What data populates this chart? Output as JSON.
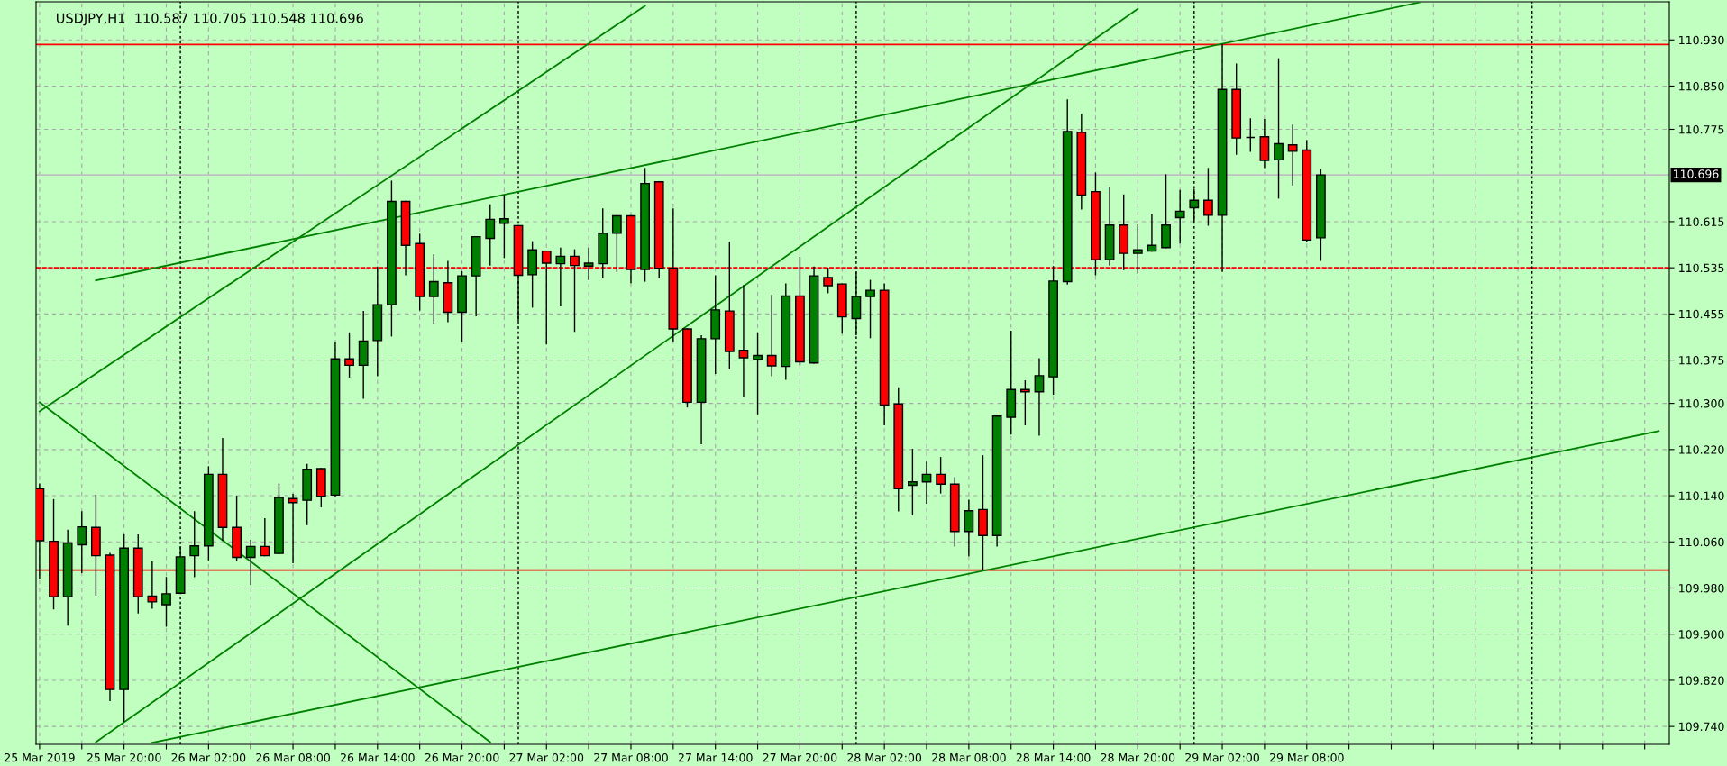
{
  "chart_data": {
    "type": "candlestick",
    "title": "USDJPY,H1  110.587 110.705 110.548 110.696",
    "x": [
      "2019-03-25T14:00",
      "2019-03-25T15:00",
      "2019-03-25T16:00",
      "2019-03-25T17:00",
      "2019-03-25T18:00",
      "2019-03-25T19:00",
      "2019-03-25T20:00",
      "2019-03-25T21:00",
      "2019-03-25T22:00",
      "2019-03-25T23:00",
      "2019-03-26T00:00",
      "2019-03-26T01:00",
      "2019-03-26T02:00",
      "2019-03-26T03:00",
      "2019-03-26T04:00",
      "2019-03-26T05:00",
      "2019-03-26T06:00",
      "2019-03-26T07:00",
      "2019-03-26T08:00",
      "2019-03-26T09:00",
      "2019-03-26T10:00",
      "2019-03-26T11:00",
      "2019-03-26T12:00",
      "2019-03-26T13:00",
      "2019-03-26T14:00",
      "2019-03-26T15:00",
      "2019-03-26T16:00",
      "2019-03-26T17:00",
      "2019-03-26T18:00",
      "2019-03-26T19:00",
      "2019-03-26T20:00",
      "2019-03-26T21:00",
      "2019-03-26T22:00",
      "2019-03-26T23:00",
      "2019-03-27T00:00",
      "2019-03-27T01:00",
      "2019-03-27T02:00",
      "2019-03-27T03:00",
      "2019-03-27T04:00",
      "2019-03-27T05:00",
      "2019-03-27T06:00",
      "2019-03-27T07:00",
      "2019-03-27T08:00",
      "2019-03-27T09:00",
      "2019-03-27T10:00",
      "2019-03-27T11:00",
      "2019-03-27T12:00",
      "2019-03-27T13:00",
      "2019-03-27T14:00",
      "2019-03-27T15:00",
      "2019-03-27T16:00",
      "2019-03-27T17:00",
      "2019-03-27T18:00",
      "2019-03-27T19:00",
      "2019-03-27T20:00",
      "2019-03-27T21:00",
      "2019-03-27T22:00",
      "2019-03-27T23:00",
      "2019-03-28T00:00",
      "2019-03-28T01:00",
      "2019-03-28T02:00",
      "2019-03-28T03:00",
      "2019-03-28T04:00",
      "2019-03-28T05:00",
      "2019-03-28T06:00",
      "2019-03-28T07:00",
      "2019-03-28T08:00",
      "2019-03-28T09:00",
      "2019-03-28T10:00",
      "2019-03-28T11:00",
      "2019-03-28T12:00",
      "2019-03-28T13:00",
      "2019-03-28T14:00",
      "2019-03-28T15:00",
      "2019-03-28T16:00",
      "2019-03-28T17:00",
      "2019-03-28T18:00",
      "2019-03-28T19:00",
      "2019-03-28T20:00",
      "2019-03-28T21:00",
      "2019-03-28T22:00",
      "2019-03-28T23:00",
      "2019-03-29T00:00",
      "2019-03-29T01:00",
      "2019-03-29T02:00",
      "2019-03-29T03:00",
      "2019-03-29T04:00",
      "2019-03-29T05:00",
      "2019-03-29T06:00",
      "2019-03-29T07:00",
      "2019-03-29T08:00",
      "2019-03-29T09:00"
    ],
    "ohlc": [
      [
        110.152,
        110.16,
        109.996,
        110.062
      ],
      [
        110.061,
        110.133,
        109.944,
        109.965
      ],
      [
        109.965,
        110.08,
        109.916,
        110.058
      ],
      [
        110.055,
        110.112,
        110.007,
        110.086
      ],
      [
        110.085,
        110.141,
        109.968,
        110.036
      ],
      [
        110.037,
        110.04,
        109.785,
        109.804
      ],
      [
        109.804,
        110.072,
        109.749,
        110.049
      ],
      [
        110.049,
        110.072,
        109.937,
        109.965
      ],
      [
        109.966,
        110.025,
        109.945,
        109.956
      ],
      [
        109.951,
        109.998,
        109.914,
        109.97
      ],
      [
        109.971,
        110.051,
        109.971,
        110.034
      ],
      [
        110.036,
        110.112,
        110.0,
        110.053
      ],
      [
        110.053,
        110.19,
        110.029,
        110.177
      ],
      [
        110.177,
        110.239,
        110.063,
        110.085
      ],
      [
        110.085,
        110.139,
        110.028,
        110.033
      ],
      [
        110.033,
        110.063,
        109.986,
        110.052
      ],
      [
        110.052,
        110.1,
        110.036,
        110.036
      ],
      [
        110.04,
        110.16,
        110.04,
        110.137
      ],
      [
        110.135,
        110.142,
        110.024,
        110.128
      ],
      [
        110.132,
        110.194,
        110.09,
        110.186
      ],
      [
        110.187,
        110.187,
        110.121,
        110.139
      ],
      [
        110.141,
        110.405,
        110.139,
        110.377
      ],
      [
        110.377,
        110.422,
        110.346,
        110.366
      ],
      [
        110.366,
        110.459,
        110.309,
        110.408
      ],
      [
        110.409,
        110.536,
        110.348,
        110.471
      ],
      [
        110.471,
        110.685,
        110.417,
        110.65
      ],
      [
        110.65,
        110.65,
        110.523,
        110.574
      ],
      [
        110.577,
        110.593,
        110.462,
        110.485
      ],
      [
        110.485,
        110.557,
        110.439,
        110.511
      ],
      [
        110.509,
        110.546,
        110.442,
        110.458
      ],
      [
        110.458,
        110.528,
        110.408,
        110.521
      ],
      [
        110.521,
        110.589,
        110.452,
        110.589
      ],
      [
        110.586,
        110.644,
        110.54,
        110.619
      ],
      [
        110.612,
        110.66,
        110.553,
        110.62
      ],
      [
        110.608,
        110.608,
        110.443,
        110.522
      ],
      [
        110.523,
        110.58,
        110.467,
        110.566
      ],
      [
        110.564,
        110.564,
        110.403,
        110.543
      ],
      [
        110.542,
        110.569,
        110.469,
        110.555
      ],
      [
        110.555,
        110.566,
        110.425,
        110.539
      ],
      [
        110.538,
        110.569,
        110.515,
        110.543
      ],
      [
        110.542,
        110.637,
        110.518,
        110.595
      ],
      [
        110.595,
        110.625,
        110.529,
        110.625
      ],
      [
        110.625,
        110.625,
        110.509,
        110.532
      ],
      [
        110.532,
        110.707,
        110.512,
        110.681
      ],
      [
        110.684,
        110.684,
        110.518,
        110.534
      ],
      [
        110.534,
        110.637,
        110.408,
        110.429
      ],
      [
        110.429,
        110.429,
        110.294,
        110.302
      ],
      [
        110.302,
        110.417,
        110.23,
        110.412
      ],
      [
        110.412,
        110.521,
        110.352,
        110.462
      ],
      [
        110.46,
        110.579,
        110.36,
        110.39
      ],
      [
        110.392,
        110.504,
        110.312,
        110.379
      ],
      [
        110.376,
        110.422,
        110.282,
        110.383
      ],
      [
        110.383,
        110.487,
        110.348,
        110.365
      ],
      [
        110.364,
        110.507,
        110.342,
        110.486
      ],
      [
        110.486,
        110.553,
        110.367,
        110.372
      ],
      [
        110.37,
        110.536,
        110.37,
        110.521
      ],
      [
        110.518,
        110.534,
        110.492,
        110.504
      ],
      [
        110.507,
        110.507,
        110.422,
        110.45
      ],
      [
        110.447,
        110.526,
        110.419,
        110.485
      ],
      [
        110.485,
        110.513,
        110.414,
        110.496
      ],
      [
        110.496,
        110.507,
        110.263,
        110.297
      ],
      [
        110.299,
        110.327,
        110.114,
        110.152
      ],
      [
        110.158,
        110.22,
        110.107,
        110.164
      ],
      [
        110.164,
        110.198,
        110.127,
        110.177
      ],
      [
        110.177,
        110.206,
        110.145,
        110.16
      ],
      [
        110.16,
        110.171,
        110.053,
        110.078
      ],
      [
        110.078,
        110.132,
        110.036,
        110.114
      ],
      [
        110.116,
        110.209,
        110.013,
        110.071
      ],
      [
        110.071,
        110.278,
        110.053,
        110.278
      ],
      [
        110.276,
        110.425,
        110.247,
        110.324
      ],
      [
        110.324,
        110.339,
        110.263,
        110.32
      ],
      [
        110.32,
        110.377,
        110.245,
        110.348
      ],
      [
        110.346,
        110.537,
        110.316,
        110.512
      ],
      [
        110.511,
        110.826,
        110.507,
        110.771
      ],
      [
        110.77,
        110.801,
        110.637,
        110.661
      ],
      [
        110.667,
        110.699,
        110.523,
        110.549
      ],
      [
        110.549,
        110.674,
        110.54,
        110.609
      ],
      [
        110.609,
        110.661,
        110.532,
        110.56
      ],
      [
        110.56,
        110.609,
        110.526,
        110.566
      ],
      [
        110.564,
        110.627,
        110.564,
        110.574
      ],
      [
        110.57,
        110.696,
        110.57,
        110.609
      ],
      [
        110.622,
        110.669,
        110.578,
        110.633
      ],
      [
        110.639,
        110.671,
        110.616,
        110.652
      ],
      [
        110.652,
        110.707,
        110.609,
        110.626
      ],
      [
        110.626,
        110.922,
        110.529,
        110.844
      ],
      [
        110.844,
        110.888,
        110.732,
        110.76
      ],
      [
        110.761,
        110.793,
        110.737,
        110.761
      ],
      [
        110.762,
        110.792,
        110.709,
        110.721
      ],
      [
        110.722,
        110.897,
        110.656,
        110.75
      ],
      [
        110.748,
        110.782,
        110.679,
        110.737
      ],
      [
        110.739,
        110.755,
        110.58,
        110.583
      ],
      [
        110.587,
        110.705,
        110.548,
        110.696
      ]
    ],
    "colors": [
      "#ff0000",
      "#ff0000",
      "#008000",
      "#008000",
      "#ff0000",
      "#ff0000",
      "#008000",
      "#ff0000",
      "#ff0000",
      "#008000",
      "#008000",
      "#008000",
      "#008000",
      "#ff0000",
      "#ff0000",
      "#008000",
      "#ff0000",
      "#008000",
      "#ff0000",
      "#008000",
      "#ff0000",
      "#008000",
      "#ff0000",
      "#008000",
      "#008000",
      "#008000",
      "#ff0000",
      "#ff0000",
      "#008000",
      "#ff0000",
      "#008000",
      "#008000",
      "#008000",
      "#008000",
      "#ff0000",
      "#008000",
      "#ff0000",
      "#008000",
      "#ff0000",
      "#008000",
      "#008000",
      "#008000",
      "#ff0000",
      "#008000",
      "#ff0000",
      "#ff0000",
      "#ff0000",
      "#008000",
      "#008000",
      "#ff0000",
      "#ff0000",
      "#008000",
      "#ff0000",
      "#008000",
      "#ff0000",
      "#008000",
      "#ff0000",
      "#ff0000",
      "#008000",
      "#008000",
      "#ff0000",
      "#ff0000",
      "#008000",
      "#008000",
      "#ff0000",
      "#ff0000",
      "#008000",
      "#ff0000",
      "#008000",
      "#008000",
      "#ff0000",
      "#008000",
      "#008000",
      "#008000",
      "#ff0000",
      "#ff0000",
      "#008000",
      "#ff0000",
      "#008000",
      "#008000",
      "#008000",
      "#008000",
      "#008000",
      "#ff0000",
      "#008000",
      "#ff0000",
      "#000000",
      "#ff0000",
      "#008000",
      "#ff0000",
      "#ff0000",
      "#008000"
    ],
    "series": [
      {
        "type": "line",
        "color": "#008000",
        "x": [
          "2019-03-25T18:00",
          "2019-03-29T16:00"
        ],
        "values": [
          110.513,
          110.995
        ]
      },
      {
        "type": "line",
        "color": "#008000",
        "x": [
          "2019-03-25T22:00",
          "2019-03-30T09:00"
        ],
        "values": [
          109.712,
          110.252
        ]
      },
      {
        "type": "line",
        "color": "#008000",
        "x": [
          "2019-03-25T14:00",
          "2019-03-27T09:00"
        ],
        "values": [
          110.286,
          110.989
        ]
      },
      {
        "type": "line",
        "color": "#008000",
        "x": [
          "2019-03-25T18:00",
          "2019-03-28T20:00"
        ],
        "values": [
          109.713,
          110.984
        ]
      },
      {
        "type": "line",
        "color": "#008000",
        "x": [
          "2019-03-25T14:00",
          "2019-03-26T22:00"
        ],
        "values": [
          110.302,
          109.713
        ]
      }
    ],
    "ref_lines": [
      {
        "axis": "y",
        "value": 110.922,
        "color": "#ff0000",
        "line_style": "solid"
      },
      {
        "axis": "y",
        "value": 110.535,
        "color": "#ff0000",
        "line_style": "dashed"
      },
      {
        "axis": "y",
        "value": 110.011,
        "color": "#ff0000",
        "line_style": "solid"
      },
      {
        "axis": "y",
        "value": 110.696,
        "label": "110.696",
        "color": "#c0c0c0",
        "line_style": "solid"
      },
      {
        "axis": "x",
        "value": "2019-03-26T00:00",
        "color": "#000000",
        "line_style": "dotted"
      },
      {
        "axis": "x",
        "value": "2019-03-27T00:00",
        "color": "#000000",
        "line_style": "dotted"
      },
      {
        "axis": "x",
        "value": "2019-03-28T00:00",
        "color": "#000000",
        "line_style": "dotted"
      },
      {
        "axis": "x",
        "value": "2019-03-29T00:00",
        "color": "#000000",
        "line_style": "dotted"
      },
      {
        "axis": "x",
        "value": "2019-03-30T00:00",
        "color": "#000000",
        "line_style": "dotted"
      }
    ],
    "xlim": [
      "2019-03-25T13:45",
      "2019-03-30T09:45"
    ],
    "xticks": [
      {
        "value": "2019-03-25T14:00",
        "label": "25 Mar 2019"
      },
      {
        "value": "2019-03-25T17:00",
        "label": null
      },
      {
        "value": "2019-03-25T20:00",
        "label": "25 Mar 20:00"
      },
      {
        "value": "2019-03-25T23:00",
        "label": null
      },
      {
        "value": "2019-03-26T02:00",
        "label": "26 Mar 02:00"
      },
      {
        "value": "2019-03-26T05:00",
        "label": null
      },
      {
        "value": "2019-03-26T08:00",
        "label": "26 Mar 08:00"
      },
      {
        "value": "2019-03-26T11:00",
        "label": null
      },
      {
        "value": "2019-03-26T14:00",
        "label": "26 Mar 14:00"
      },
      {
        "value": "2019-03-26T17:00",
        "label": null
      },
      {
        "value": "2019-03-26T20:00",
        "label": "26 Mar 20:00"
      },
      {
        "value": "2019-03-26T23:00",
        "label": null
      },
      {
        "value": "2019-03-27T02:00",
        "label": "27 Mar 02:00"
      },
      {
        "value": "2019-03-27T05:00",
        "label": null
      },
      {
        "value": "2019-03-27T08:00",
        "label": "27 Mar 08:00"
      },
      {
        "value": "2019-03-27T11:00",
        "label": null
      },
      {
        "value": "2019-03-27T14:00",
        "label": "27 Mar 14:00"
      },
      {
        "value": "2019-03-27T17:00",
        "label": null
      },
      {
        "value": "2019-03-27T20:00",
        "label": "27 Mar 20:00"
      },
      {
        "value": "2019-03-27T23:00",
        "label": null
      },
      {
        "value": "2019-03-28T02:00",
        "label": "28 Mar 02:00"
      },
      {
        "value": "2019-03-28T05:00",
        "label": null
      },
      {
        "value": "2019-03-28T08:00",
        "label": "28 Mar 08:00"
      },
      {
        "value": "2019-03-28T11:00",
        "label": null
      },
      {
        "value": "2019-03-28T14:00",
        "label": "28 Mar 14:00"
      },
      {
        "value": "2019-03-28T17:00",
        "label": null
      },
      {
        "value": "2019-03-28T20:00",
        "label": "28 Mar 20:00"
      },
      {
        "value": "2019-03-28T23:00",
        "label": null
      },
      {
        "value": "2019-03-29T02:00",
        "label": "29 Mar 02:00"
      },
      {
        "value": "2019-03-29T05:00",
        "label": null
      },
      {
        "value": "2019-03-29T08:00",
        "label": "29 Mar 08:00"
      },
      {
        "value": "2019-03-29T11:00",
        "label": null
      },
      {
        "value": "2019-03-29T14:00",
        "label": null
      },
      {
        "value": "2019-03-29T17:00",
        "label": null
      },
      {
        "value": "2019-03-29T20:00",
        "label": null
      },
      {
        "value": "2019-03-29T23:00",
        "label": null
      },
      {
        "value": "2019-03-30T02:00",
        "label": null
      },
      {
        "value": "2019-03-30T05:00",
        "label": null
      },
      {
        "value": "2019-03-30T08:00",
        "label": null
      }
    ],
    "ylim": [
      109.709,
      110.996
    ],
    "yticks": [
      {
        "value": 110.93,
        "label": "110.930"
      },
      {
        "value": 110.85,
        "label": "110.850"
      },
      {
        "value": 110.775,
        "label": "110.775"
      },
      {
        "value": 110.615,
        "label": "110.615"
      },
      {
        "value": 110.535,
        "label": "110.535"
      },
      {
        "value": 110.455,
        "label": "110.455"
      },
      {
        "value": 110.375,
        "label": "110.375"
      },
      {
        "value": 110.3,
        "label": "110.300"
      },
      {
        "value": 110.22,
        "label": "110.220"
      },
      {
        "value": 110.14,
        "label": "110.140"
      },
      {
        "value": 110.06,
        "label": "110.060"
      },
      {
        "value": 109.98,
        "label": "109.980"
      },
      {
        "value": 109.9,
        "label": "109.900"
      },
      {
        "value": 109.82,
        "label": "109.820"
      },
      {
        "value": 109.74,
        "label": "109.740"
      }
    ],
    "grid": true
  }
}
